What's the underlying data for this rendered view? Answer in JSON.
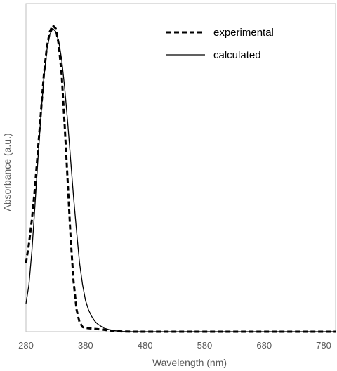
{
  "chart_data": {
    "type": "line",
    "xlabel": "Wavelength (nm)",
    "ylabel": "Absorbance (a.u.)",
    "xlim": [
      280,
      800
    ],
    "ylim": [
      0,
      1.05
    ],
    "xticks": [
      "280",
      "380",
      "480",
      "580",
      "680",
      "780"
    ],
    "grid": false,
    "legend_position": "top-right",
    "series": [
      {
        "name": "experimental",
        "style": "dashed",
        "color": "#000000",
        "x": [
          280,
          285,
          290,
          295,
          300,
          305,
          310,
          315,
          320,
          325,
          330,
          335,
          340,
          345,
          350,
          355,
          360,
          365,
          370,
          375,
          380,
          385,
          390,
          395,
          400,
          410,
          420,
          430,
          440,
          460,
          500,
          600,
          700,
          800
        ],
        "y": [
          0.22,
          0.28,
          0.36,
          0.46,
          0.58,
          0.7,
          0.82,
          0.91,
          0.96,
          0.98,
          0.97,
          0.92,
          0.82,
          0.66,
          0.48,
          0.3,
          0.16,
          0.07,
          0.03,
          0.015,
          0.012,
          0.011,
          0.01,
          0.009,
          0.008,
          0.006,
          0.004,
          0.002,
          0.001,
          0.0,
          0.0,
          0.0,
          0.0,
          0.0
        ]
      },
      {
        "name": "calculated",
        "style": "solid",
        "color": "#000000",
        "x": [
          280,
          285,
          290,
          295,
          300,
          305,
          310,
          315,
          320,
          325,
          330,
          335,
          340,
          345,
          350,
          355,
          360,
          365,
          370,
          375,
          380,
          385,
          390,
          395,
          400,
          410,
          420,
          430,
          440,
          460,
          500,
          600,
          700,
          800
        ],
        "y": [
          0.09,
          0.15,
          0.26,
          0.4,
          0.55,
          0.69,
          0.81,
          0.9,
          0.95,
          0.97,
          0.96,
          0.93,
          0.87,
          0.78,
          0.67,
          0.55,
          0.43,
          0.32,
          0.22,
          0.15,
          0.1,
          0.07,
          0.05,
          0.035,
          0.025,
          0.012,
          0.006,
          0.003,
          0.001,
          0.0,
          0.0,
          0.0,
          0.0,
          0.0
        ]
      }
    ]
  }
}
